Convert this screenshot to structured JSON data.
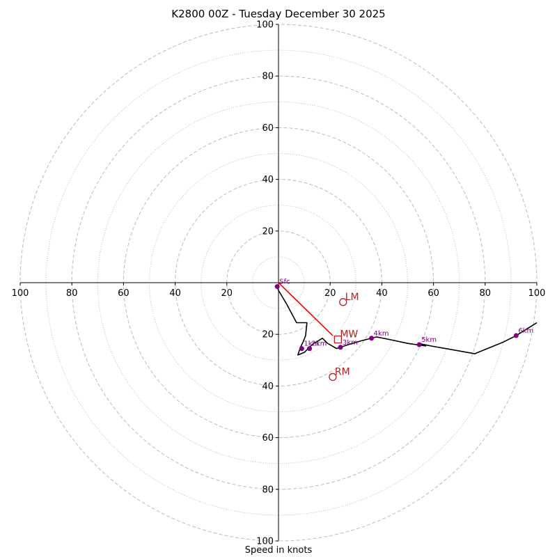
{
  "chart_data": {
    "type": "hodograph",
    "title": "K2800 00Z - Tuesday December 30 2025",
    "xlabel": "Speed in knots",
    "range": [
      -100,
      100
    ],
    "ring_major": [
      20,
      40,
      60,
      80,
      100
    ],
    "ring_minor": [
      10,
      30,
      50,
      70,
      90
    ],
    "x_tick_labels": [
      "100",
      "80",
      "60",
      "40",
      "20",
      "20",
      "40",
      "60",
      "80",
      "100"
    ],
    "x_tick_values": [
      -100,
      -80,
      -60,
      -40,
      -20,
      20,
      40,
      60,
      80,
      100
    ],
    "y_tick_labels_upper": [
      "20",
      "40",
      "60",
      "80",
      "100"
    ],
    "y_tick_values_upper": [
      20,
      40,
      60,
      80,
      100
    ],
    "y_tick_labels_lower": [
      "20",
      "40",
      "60",
      "80",
      "100"
    ],
    "y_tick_values_lower": [
      -20,
      -40,
      -60,
      -80,
      -100
    ],
    "trace": [
      [
        -0.5,
        -1.5
      ],
      [
        0,
        -3
      ],
      [
        3,
        -8
      ],
      [
        7,
        -15.5
      ],
      [
        11,
        -15.5
      ],
      [
        10.5,
        -20.5
      ],
      [
        9.5,
        -23
      ],
      [
        8.5,
        -25
      ],
      [
        7.5,
        -28
      ],
      [
        10,
        -27
      ],
      [
        13,
        -24
      ],
      [
        17,
        -21.5
      ],
      [
        19,
        -23.5
      ],
      [
        22.5,
        -25.5
      ],
      [
        24,
        -25
      ],
      [
        27,
        -24
      ],
      [
        32,
        -22.5
      ],
      [
        36,
        -21.5
      ],
      [
        38,
        -21
      ],
      [
        43,
        -22
      ],
      [
        50,
        -23.5
      ],
      [
        57,
        -24.5
      ],
      [
        54,
        -23.5
      ],
      [
        59,
        -24.5
      ],
      [
        76,
        -27.5
      ],
      [
        87,
        -23
      ],
      [
        92,
        -20.5
      ],
      [
        100,
        -15.5
      ]
    ],
    "height_markers": [
      {
        "label": "Sfc",
        "u": -0.5,
        "v": -1.5
      },
      {
        "label": "1km",
        "u": 9,
        "v": -25.5
      },
      {
        "label": "2km",
        "u": 12,
        "v": -25.5
      },
      {
        "label": "3km",
        "u": 24,
        "v": -25
      },
      {
        "label": "4km",
        "u": 36,
        "v": -21.5
      },
      {
        "label": "5km",
        "u": 54.5,
        "v": -24
      },
      {
        "label": "6km",
        "u": 92,
        "v": -20.5
      }
    ],
    "storm_motion": {
      "lm": {
        "label": "LM",
        "u": 25,
        "v": -7.5
      },
      "mw": {
        "label": "MW",
        "u": 23,
        "v": -22
      },
      "rm": {
        "label": "RM",
        "u": 21,
        "v": -36.5
      },
      "shear_vector": {
        "from": [
          0,
          0
        ],
        "to": [
          21,
          -20.5
        ]
      }
    },
    "colors": {
      "trace": "#000000",
      "marker": "#800080",
      "storm_motion": "#b22222",
      "shear_vector": "#ff0000",
      "grid": "#bbbbbb",
      "axes": "#000000"
    }
  }
}
